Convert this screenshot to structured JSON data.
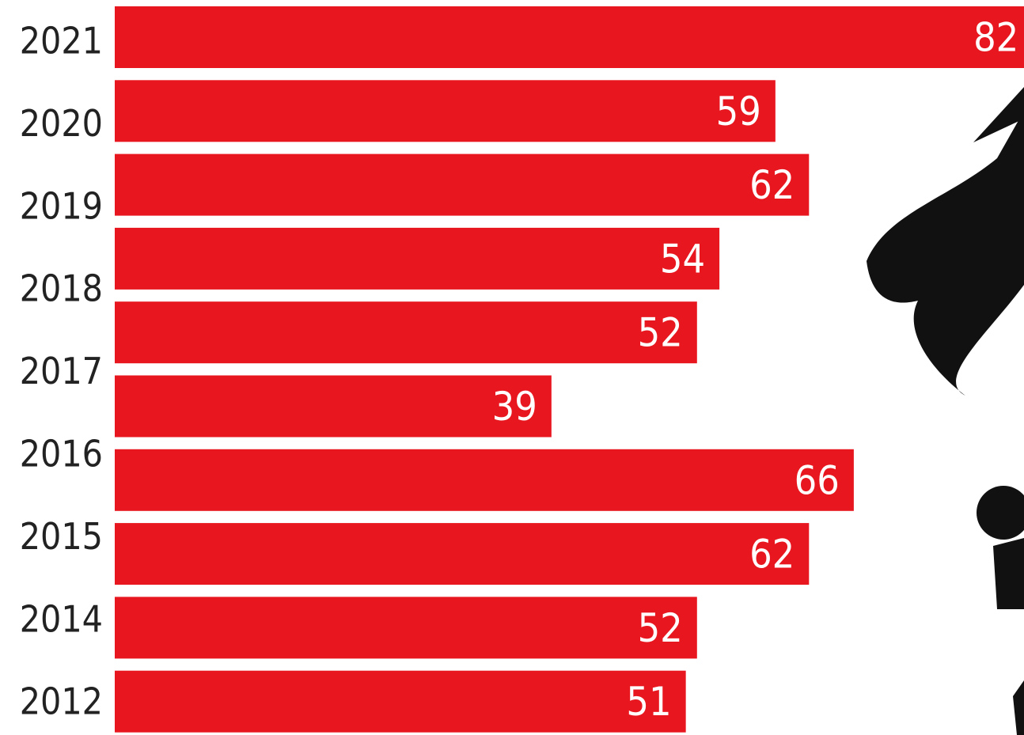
{
  "chart_data": {
    "type": "bar",
    "orientation": "horizontal",
    "categories": [
      "2021",
      "2020",
      "2019",
      "2018",
      "2017",
      null,
      "2016",
      "2015",
      "2014",
      "2012"
    ],
    "values": [
      82,
      59,
      62,
      54,
      52,
      39,
      66,
      62,
      52,
      51
    ],
    "color": "#e8161f"
  }
}
